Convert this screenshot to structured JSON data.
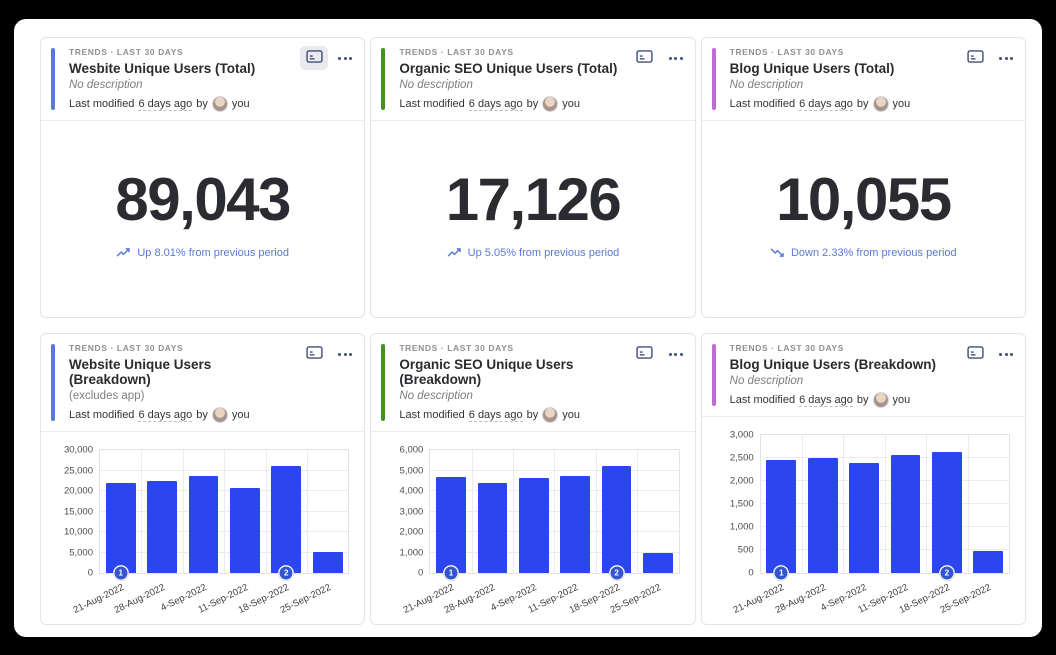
{
  "colors": {
    "bar": "#2b46ef",
    "annotation_badge": "#3355cf",
    "trend_text": "#5b79d6",
    "icon": "#3e4d7a",
    "ribbon_blue": "#5b7ad6",
    "ribbon_green": "#41941f",
    "ribbon_purple": "#c06ad8"
  },
  "cards": [
    {
      "ribbon_color": "#5b7ad6",
      "meta": "TRENDS · LAST 30 DAYS",
      "title": "Wesbite Unique Users (Total)",
      "description": "No description",
      "modified": {
        "prefix": "Last modified",
        "time": "6 days ago",
        "by": "by",
        "user": "you"
      },
      "value": "89,043",
      "trend": {
        "direction": "up",
        "text": "Up 8.01% from previous period"
      }
    },
    {
      "ribbon_color": "#41941f",
      "meta": "TRENDS · LAST 30 DAYS",
      "title": "Organic SEO Unique Users (Total)",
      "description": "No description",
      "modified": {
        "prefix": "Last modified",
        "time": "6 days ago",
        "by": "by",
        "user": "you"
      },
      "value": "17,126",
      "trend": {
        "direction": "up",
        "text": "Up 5.05% from previous period"
      }
    },
    {
      "ribbon_color": "#c06ad8",
      "meta": "TRENDS · LAST 30 DAYS",
      "title": "Blog Unique Users (Total)",
      "description": "No description",
      "modified": {
        "prefix": "Last modified",
        "time": "6 days ago",
        "by": "by",
        "user": "you"
      },
      "value": "10,055",
      "trend": {
        "direction": "down",
        "text": "Down 2.33% from previous period"
      }
    },
    {
      "ribbon_color": "#5b7ad6",
      "meta": "TRENDS · LAST 30 DAYS",
      "title": "Website Unique Users (Breakdown)",
      "description": "(excludes app)",
      "modified": {
        "prefix": "Last modified",
        "time": "6 days ago",
        "by": "by",
        "user": "you"
      },
      "chart_data": {
        "type": "bar",
        "categories": [
          "21-Aug-2022",
          "28-Aug-2022",
          "4-Sep-2022",
          "11-Sep-2022",
          "18-Sep-2022",
          "25-Sep-2022"
        ],
        "values": [
          22000,
          22500,
          23600,
          20700,
          26100,
          5100
        ],
        "ylim": [
          0,
          30000
        ],
        "ytick_step": 5000,
        "grid": true,
        "annotations": [
          {
            "index": 0,
            "label": "1"
          },
          {
            "index": 4,
            "label": "2"
          }
        ]
      }
    },
    {
      "ribbon_color": "#41941f",
      "meta": "TRENDS · LAST 30 DAYS",
      "title": "Organic SEO Unique Users (Breakdown)",
      "description": "No description",
      "modified": {
        "prefix": "Last modified",
        "time": "6 days ago",
        "by": "by",
        "user": "you"
      },
      "chart_data": {
        "type": "bar",
        "categories": [
          "21-Aug-2022",
          "28-Aug-2022",
          "4-Sep-2022",
          "11-Sep-2022",
          "18-Sep-2022",
          "25-Sep-2022"
        ],
        "values": [
          4700,
          4400,
          4650,
          4720,
          5200,
          1000
        ],
        "ylim": [
          0,
          6000
        ],
        "ytick_step": 1000,
        "grid": true,
        "annotations": [
          {
            "index": 0,
            "label": "1"
          },
          {
            "index": 4,
            "label": "2"
          }
        ]
      }
    },
    {
      "ribbon_color": "#c06ad8",
      "meta": "TRENDS · LAST 30 DAYS",
      "title": "Blog Unique Users (Breakdown)",
      "description": "No description",
      "modified": {
        "prefix": "Last modified",
        "time": "6 days ago",
        "by": "by",
        "user": "you"
      },
      "chart_data": {
        "type": "bar",
        "categories": [
          "21-Aug-2022",
          "28-Aug-2022",
          "4-Sep-2022",
          "11-Sep-2022",
          "18-Sep-2022",
          "25-Sep-2022"
        ],
        "values": [
          2450,
          2500,
          2400,
          2570,
          2630,
          470
        ],
        "ylim": [
          0,
          3000
        ],
        "ytick_step": 500,
        "grid": true,
        "annotations": [
          {
            "index": 0,
            "label": "1"
          },
          {
            "index": 4,
            "label": "2"
          }
        ]
      }
    }
  ]
}
